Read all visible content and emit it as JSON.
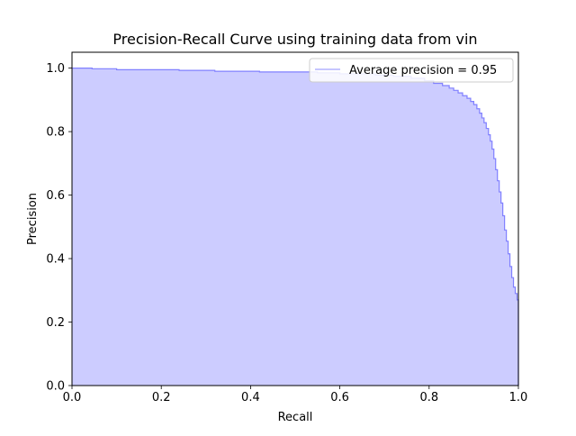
{
  "chart_data": {
    "type": "area",
    "title": "Precision-Recall Curve using training data from vin",
    "xlabel": "Recall",
    "ylabel": "Precision",
    "xlim": [
      0,
      1
    ],
    "ylim": [
      0,
      1.05
    ],
    "xticks": [
      0.0,
      0.2,
      0.4,
      0.6,
      0.8,
      1.0
    ],
    "yticks": [
      0.0,
      0.2,
      0.4,
      0.6,
      0.8,
      1.0
    ],
    "xtick_labels": [
      "0.0",
      "0.2",
      "0.4",
      "0.6",
      "0.8",
      "1.0"
    ],
    "ytick_labels": [
      "0.0",
      "0.2",
      "0.4",
      "0.6",
      "0.8",
      "1.0"
    ],
    "grid": false,
    "legend_position": "top-right",
    "colors": {
      "line": "#8080ff",
      "fill": "#ccccff",
      "legend_line": "#b3b3ff"
    },
    "series": [
      {
        "name": "Average precision = 0.95",
        "step": "post",
        "x": [
          0.0,
          0.045,
          0.1,
          0.24,
          0.32,
          0.42,
          0.55,
          0.6,
          0.68,
          0.72,
          0.76,
          0.79,
          0.81,
          0.83,
          0.845,
          0.855,
          0.865,
          0.875,
          0.885,
          0.893,
          0.9,
          0.907,
          0.913,
          0.918,
          0.923,
          0.928,
          0.933,
          0.937,
          0.941,
          0.945,
          0.949,
          0.953,
          0.957,
          0.961,
          0.965,
          0.969,
          0.973,
          0.977,
          0.981,
          0.985,
          0.989,
          0.993,
          0.997,
          1.0
        ],
        "y": [
          1.0,
          0.998,
          0.995,
          0.993,
          0.99,
          0.988,
          0.985,
          0.982,
          0.978,
          0.974,
          0.968,
          0.96,
          0.952,
          0.945,
          0.937,
          0.93,
          0.922,
          0.913,
          0.905,
          0.895,
          0.885,
          0.872,
          0.858,
          0.843,
          0.828,
          0.81,
          0.79,
          0.77,
          0.745,
          0.715,
          0.68,
          0.645,
          0.61,
          0.575,
          0.535,
          0.49,
          0.455,
          0.415,
          0.375,
          0.34,
          0.31,
          0.29,
          0.27,
          0.26
        ]
      }
    ]
  }
}
